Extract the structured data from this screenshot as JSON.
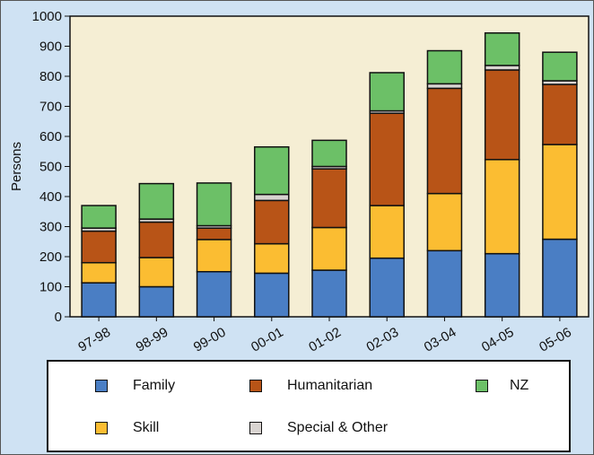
{
  "chart_data": {
    "type": "bar",
    "stacked": true,
    "title": "",
    "xlabel": "",
    "ylabel": "Persons",
    "ylim": [
      0,
      1000
    ],
    "yticks": [
      0,
      100,
      200,
      300,
      400,
      500,
      600,
      700,
      800,
      900,
      1000
    ],
    "categories": [
      "97-98",
      "98-99",
      "99-00",
      "00-01",
      "01-02",
      "02-03",
      "03-04",
      "04-05",
      "05-06"
    ],
    "series": [
      {
        "name": "Family",
        "color": "#4a7ec4",
        "values": [
          113,
          100,
          150,
          145,
          155,
          195,
          220,
          210,
          258
        ]
      },
      {
        "name": "Skill",
        "color": "#fbbd32",
        "values": [
          67,
          97,
          107,
          98,
          142,
          175,
          190,
          313,
          315
        ]
      },
      {
        "name": "Humanitarian",
        "color": "#b85417",
        "values": [
          105,
          118,
          38,
          144,
          195,
          307,
          350,
          298,
          200
        ]
      },
      {
        "name": "Special & Other",
        "color": "#d9d4d1",
        "values": [
          10,
          10,
          8,
          20,
          8,
          8,
          15,
          15,
          12
        ]
      },
      {
        "name": "NZ",
        "color": "#6cc067",
        "values": [
          75,
          118,
          142,
          158,
          87,
          127,
          110,
          108,
          95
        ]
      }
    ],
    "grid": false,
    "legend_position": "bottom"
  },
  "legend": {
    "family": "Family",
    "humanitarian": "Humanitarian",
    "nz": "NZ",
    "skill": "Skill",
    "special": "Special & Other"
  },
  "colors": {
    "plot_bg": "#f5eed4",
    "page_bg": "#cfe2f3",
    "bar_stroke": "#111111"
  }
}
